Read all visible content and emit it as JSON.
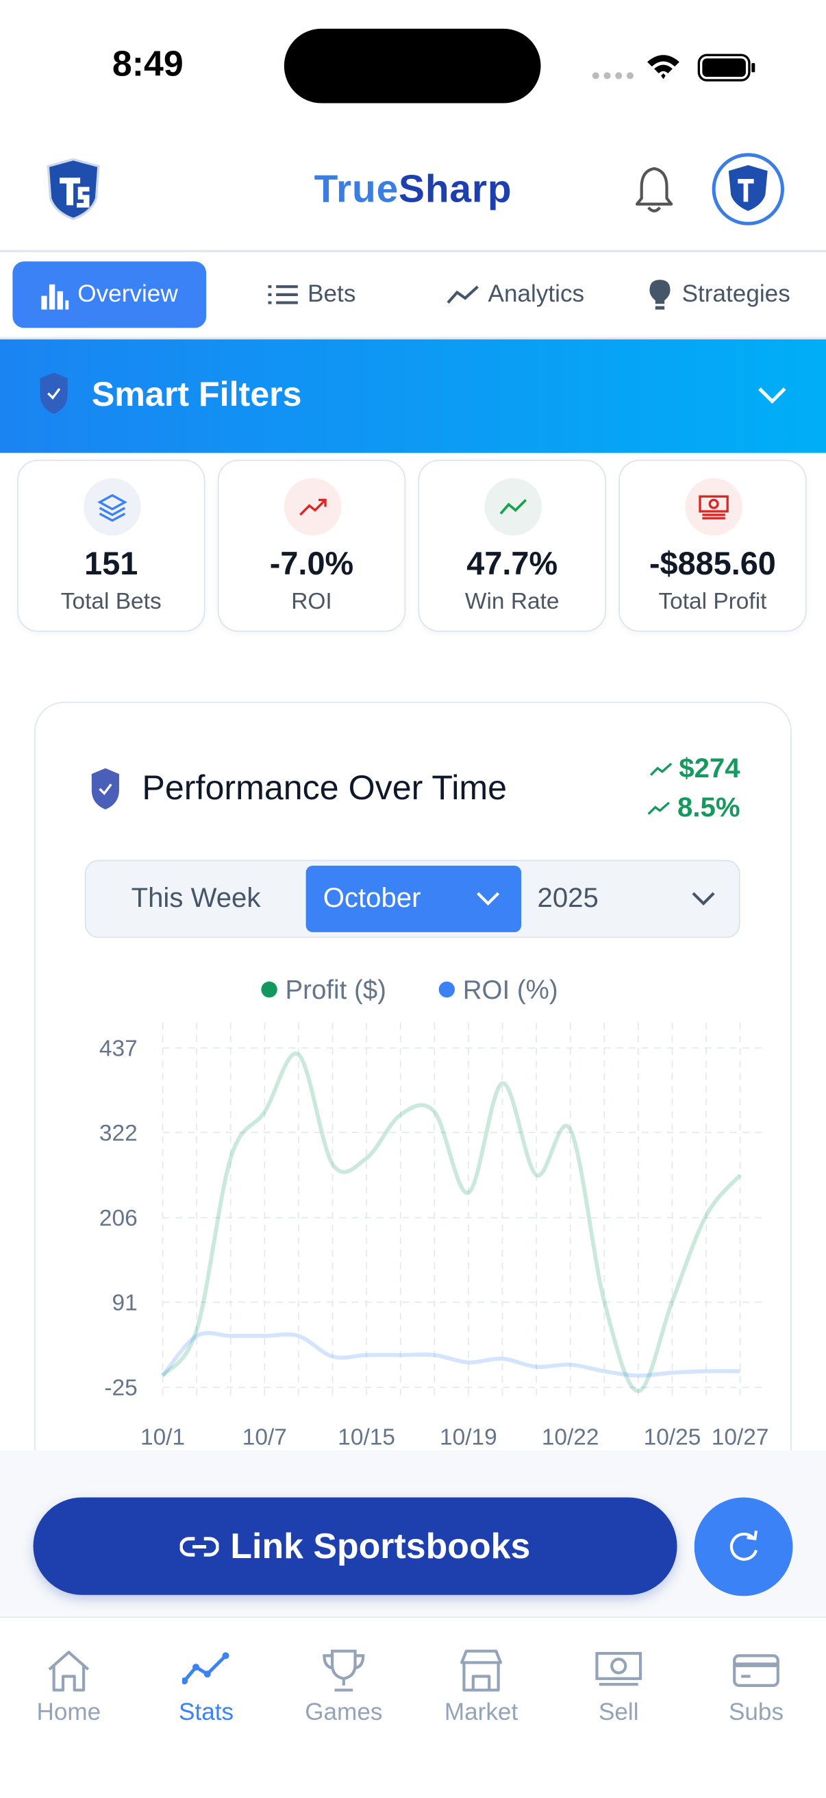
{
  "status": {
    "time": "8:49"
  },
  "header": {
    "title_part1": "True",
    "title_part2": "Sharp"
  },
  "tabs": [
    "Overview",
    "Bets",
    "Analytics",
    "Strategies"
  ],
  "filters": {
    "title": "Smart Filters"
  },
  "stats": [
    {
      "value": "151",
      "label": "Total Bets"
    },
    {
      "value": "-7.0%",
      "label": "ROI"
    },
    {
      "value": "47.7%",
      "label": "Win Rate"
    },
    {
      "value": "-$885.60",
      "label": "Total Profit"
    }
  ],
  "performance": {
    "title": "Performance Over Time",
    "change_amount": "$274",
    "change_percent": "8.5%",
    "period_options": [
      "This Week",
      "October",
      "2025"
    ],
    "chart": {
      "type": "line",
      "categories": [
        "10/1",
        null,
        null,
        "10/7",
        null,
        null,
        "10/15",
        null,
        null,
        "10/19",
        null,
        null,
        "10/22",
        null,
        null,
        "10/25",
        null,
        "10/27"
      ],
      "series": [
        {
          "name": "Profit ($)",
          "color": "#12985f",
          "values": [
            -9,
            53,
            287,
            350,
            428,
            279,
            287,
            346,
            350,
            240,
            389,
            264,
            326,
            92,
            -30,
            92,
            209,
            264
          ]
        },
        {
          "name": "ROI (%)",
          "color": "#3b82f6",
          "values": [
            -9,
            45,
            45,
            45,
            45,
            17,
            19,
            19,
            19,
            9,
            14,
            3,
            6,
            -3,
            -9,
            -5,
            -3,
            -3
          ]
        }
      ],
      "ylim": [
        -25,
        437
      ],
      "yticks": [
        437,
        322,
        206,
        91,
        -25
      ],
      "grid": true
    }
  },
  "actions": {
    "link": "Link Sportsbooks"
  },
  "nav": {
    "items": [
      "Home",
      "Stats",
      "Games",
      "Market",
      "Sell",
      "Subs"
    ],
    "active": 1
  }
}
